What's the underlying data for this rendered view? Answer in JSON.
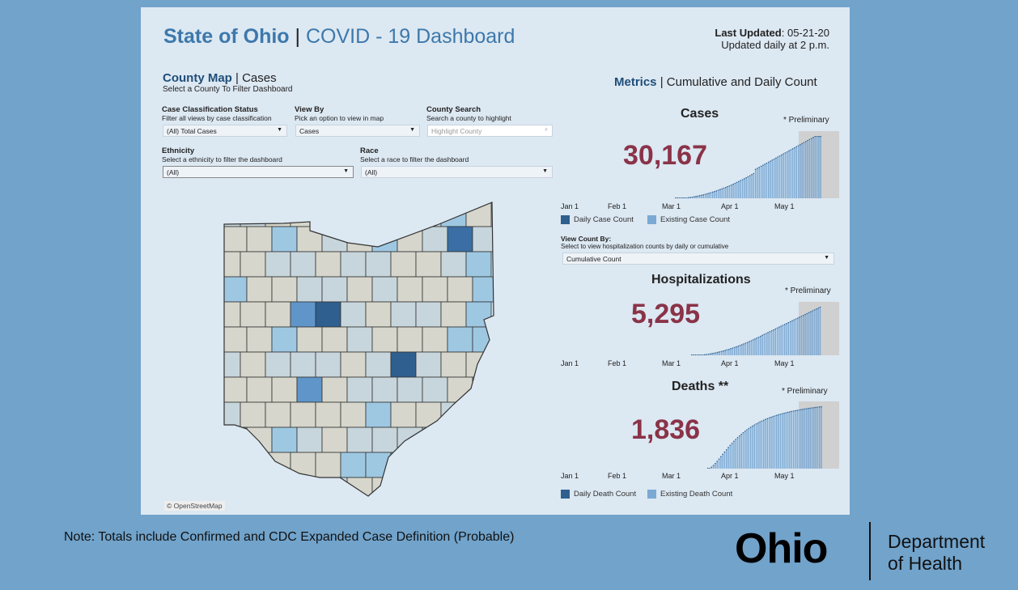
{
  "header": {
    "title_main": "State of Ohio",
    "title_sep": "|",
    "title_rest": "COVID - 19 Dashboard",
    "last_updated_label": "Last Updated",
    "last_updated_value": ": 05-21-20",
    "update_note": "Updated daily at 2 p.m."
  },
  "map_section": {
    "title_bold": "County Map",
    "title_rest": "| Cases",
    "subtitle": "Select a County To Filter Dashboard",
    "attribution": "© OpenStreetMap"
  },
  "filters": {
    "case_class": {
      "label": "Case Classification Status",
      "help": "Filter all views by case classification",
      "value": "(All) Total Cases"
    },
    "view_by": {
      "label": "View By",
      "help": "Pick an option to view in map",
      "value": "Cases"
    },
    "county_search": {
      "label": "County Search",
      "help": "Search a county to highlight",
      "placeholder": "Highlight County"
    },
    "ethnicity": {
      "label": "Ethnicity",
      "help": "Select a ethnicity to filter the dashboard",
      "value": "(All)"
    },
    "race": {
      "label": "Race",
      "help": "Select a race to filter the dashboard",
      "value": "(All)"
    }
  },
  "metrics": {
    "title_bold": "Metrics",
    "title_rest": "| Cumulative and Daily Count",
    "x_ticks": [
      "Jan 1",
      "Feb 1",
      "Mar 1",
      "Apr 1",
      "May 1"
    ],
    "prelim": "* Preliminary",
    "cases": {
      "title": "Cases",
      "value": "30,167",
      "legend": [
        "Daily Case Count",
        "Existing Case Count"
      ]
    },
    "view_count": {
      "label": "View Count By:",
      "help": "Select to view hospitalization counts by daily or cumulative",
      "value": "Cumulative Count"
    },
    "hosp": {
      "title": "Hospitalizations",
      "value": "5,295"
    },
    "deaths": {
      "title": "Deaths **",
      "value": "1,836",
      "legend": [
        "Daily Death Count",
        "Existing Death Count"
      ]
    }
  },
  "colors": {
    "daily": "#2e5f8f",
    "existing": "#7ba9d4",
    "value": "#8a3348",
    "title": "#3d78ab"
  },
  "footer": {
    "note": "Note: Totals include Confirmed and CDC Expanded Case Definition (Probable)",
    "logo_text": "Ohio",
    "dept_line1": "Department",
    "dept_line2": "of Health"
  }
}
